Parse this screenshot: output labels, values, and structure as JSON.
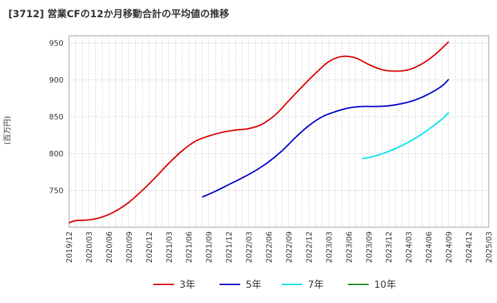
{
  "title": "[3712]  営業CFの12か月移動合計の平均値の推移",
  "y_unit": "(百万円)",
  "chart_data": {
    "type": "line",
    "title": "[3712]  営業CFの12か月移動合計の平均値の推移",
    "ylabel": "(百万円)",
    "xlabel": "",
    "ylim": [
      700,
      960
    ],
    "yticks": [
      750,
      800,
      850,
      900,
      950
    ],
    "xlim": [
      "2019/12",
      "2025/03"
    ],
    "xticks": [
      "2019/12",
      "2020/03",
      "2020/06",
      "2020/09",
      "2020/12",
      "2021/03",
      "2021/06",
      "2021/09",
      "2021/12",
      "2022/03",
      "2022/06",
      "2022/09",
      "2022/12",
      "2023/03",
      "2023/06",
      "2023/09",
      "2023/12",
      "2024/03",
      "2024/06",
      "2024/09",
      "2024/12",
      "2025/03"
    ],
    "grid": true,
    "legend_position": "bottom",
    "series": [
      {
        "name": "3年",
        "color": "#dd0000",
        "x": [
          "2019/12",
          "2020/01",
          "2020/03",
          "2020/05",
          "2020/07",
          "2020/09",
          "2020/11",
          "2021/01",
          "2021/03",
          "2021/05",
          "2021/07",
          "2021/09",
          "2021/11",
          "2022/01",
          "2022/03",
          "2022/05",
          "2022/07",
          "2022/09",
          "2022/11",
          "2023/01",
          "2023/03",
          "2023/05",
          "2023/07",
          "2023/09",
          "2023/11",
          "2024/01",
          "2024/03",
          "2024/05",
          "2024/07",
          "2024/09"
        ],
        "values": [
          706,
          709,
          710,
          714,
          722,
          734,
          750,
          768,
          787,
          804,
          817,
          824,
          829,
          832,
          834,
          840,
          853,
          872,
          891,
          909,
          925,
          932,
          930,
          921,
          914,
          912,
          914,
          922,
          935,
          952
        ]
      },
      {
        "name": "5年",
        "color": "#0000cc",
        "x": [
          "2021/08",
          "2021/10",
          "2021/12",
          "2022/02",
          "2022/04",
          "2022/06",
          "2022/08",
          "2022/10",
          "2022/12",
          "2023/02",
          "2023/04",
          "2023/06",
          "2023/08",
          "2023/10",
          "2023/12",
          "2024/02",
          "2024/04",
          "2024/06",
          "2024/08",
          "2024/09"
        ],
        "values": [
          741,
          749,
          758,
          767,
          777,
          789,
          804,
          822,
          838,
          850,
          857,
          862,
          864,
          864,
          865,
          868,
          873,
          881,
          892,
          901
        ]
      },
      {
        "name": "7年",
        "color": "#00e5ee",
        "x": [
          "2023/08",
          "2023/10",
          "2023/12",
          "2024/02",
          "2024/04",
          "2024/06",
          "2024/08",
          "2024/09"
        ],
        "values": [
          793,
          797,
          803,
          811,
          821,
          833,
          847,
          856
        ]
      },
      {
        "name": "10年",
        "color": "#228b22",
        "x": [],
        "values": []
      }
    ]
  }
}
